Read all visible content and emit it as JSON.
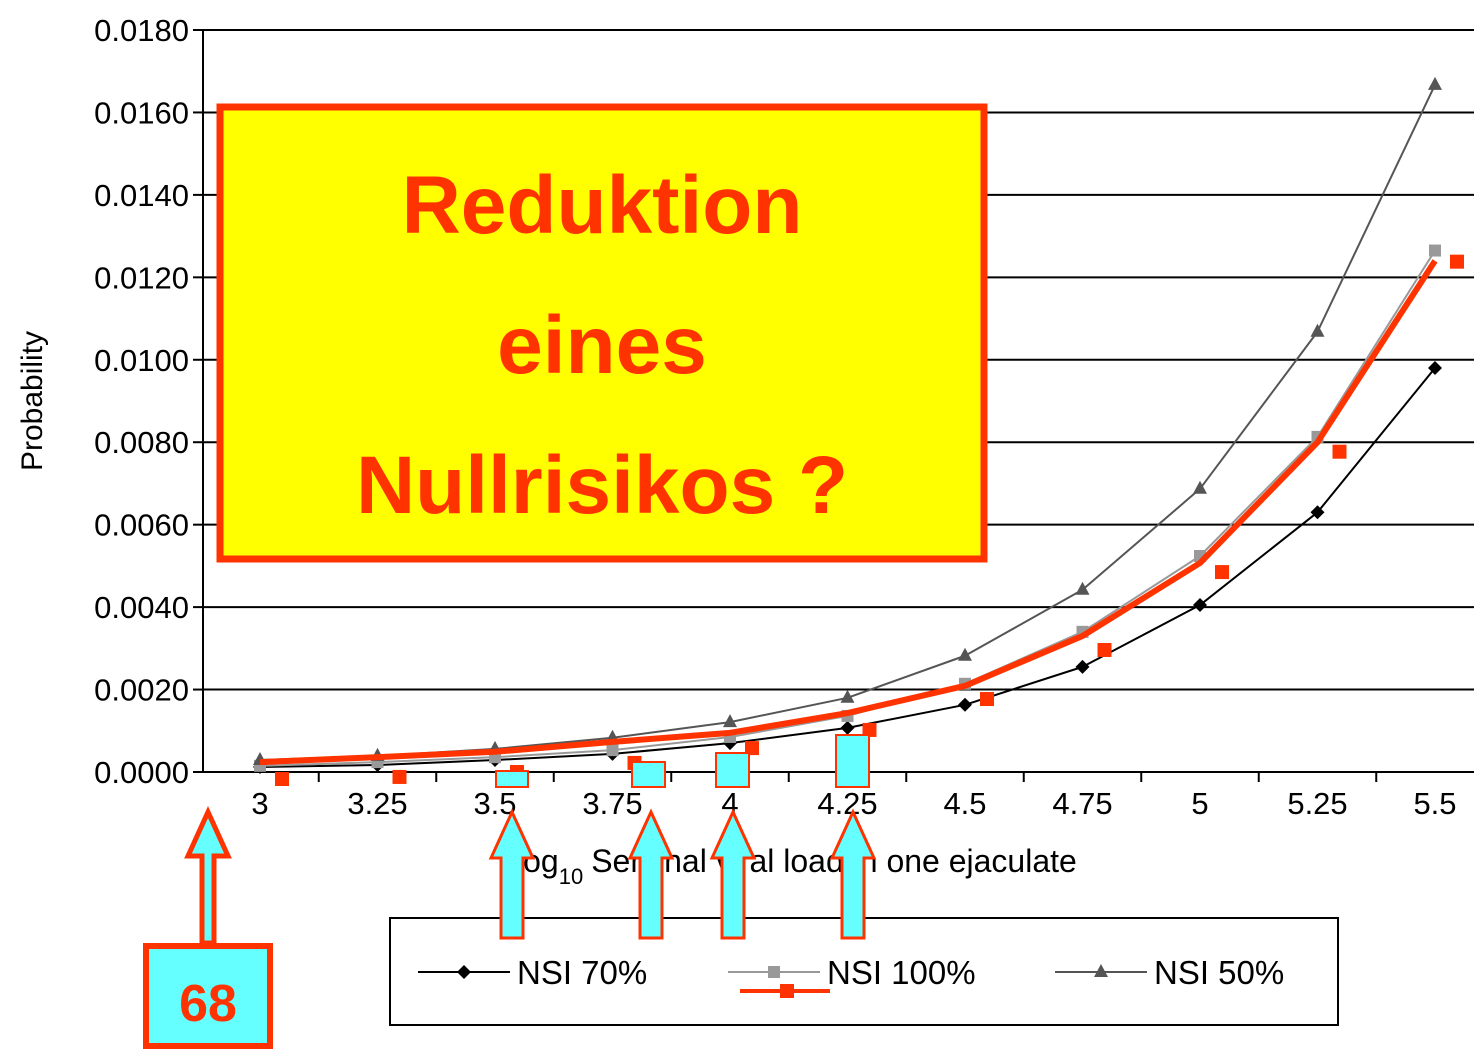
{
  "chart_data": {
    "type": "line",
    "y_label": "Probability",
    "x_label": {
      "prefix": "log",
      "subscript": "10",
      "text": "Seminal viral load in one ejaculate"
    },
    "categories": [
      "3",
      "3.25",
      "3.5",
      "3.75",
      "4",
      "4.25",
      "4.5",
      "4.75",
      "5",
      "5.25",
      "5.5"
    ],
    "ylim": [
      0,
      0.018
    ],
    "yticks": [
      {
        "value": 0,
        "label": "0.0000"
      },
      {
        "value": 0.002,
        "label": "0.0020"
      },
      {
        "value": 0.004,
        "label": "0.0040"
      },
      {
        "value": 0.006,
        "label": "0.0060"
      },
      {
        "value": 0.008,
        "label": "0.0080"
      },
      {
        "value": 0.01,
        "label": "0.0100"
      },
      {
        "value": 0.012,
        "label": "0.0120"
      },
      {
        "value": 0.014,
        "label": "0.0140"
      },
      {
        "value": 0.016,
        "label": "0.0160"
      },
      {
        "value": 0.018,
        "label": "0.0180"
      }
    ],
    "grid": true,
    "series": [
      {
        "name": "NSI 70%",
        "color": "#000000",
        "marker": "diamond",
        "values": [
          0.00012,
          0.00017,
          0.00029,
          0.00044,
          0.0007,
          0.00107,
          0.00163,
          0.00255,
          0.00405,
          0.0063,
          0.0098
        ]
      },
      {
        "name": "NSI 100%",
        "color": "#999999",
        "marker": "square",
        "values": [
          0.00015,
          0.00024,
          0.00036,
          0.00053,
          0.00085,
          0.00136,
          0.00214,
          0.0034,
          0.00524,
          0.00813,
          0.01265
        ]
      },
      {
        "name": "NSI 50%",
        "color": "#555555",
        "marker": "triangle",
        "values": [
          0.00029,
          0.00039,
          0.00056,
          0.00083,
          0.00121,
          0.0018,
          0.00282,
          0.00442,
          0.00687,
          0.01068,
          0.01667
        ]
      },
      {
        "color": "#ff3300",
        "marker": "none",
        "values": [
          0.00024,
          0.00036,
          0.00049,
          0.00073,
          0.00095,
          0.00143,
          0.00209,
          0.0033,
          0.00507,
          0.008,
          0.0124
        ]
      },
      {
        "color": "#ff3300",
        "marker": "offset-square",
        "values": [
          -0.00017,
          -0.00012,
          0,
          0.00022,
          0.00058,
          0.00102,
          0.00177,
          0.00296,
          0.00485,
          0.00777,
          0.01238
        ]
      }
    ],
    "annotations": {
      "headline": [
        "Reduktion",
        "eines",
        "Nullrisikos ?"
      ],
      "page": "68"
    }
  }
}
